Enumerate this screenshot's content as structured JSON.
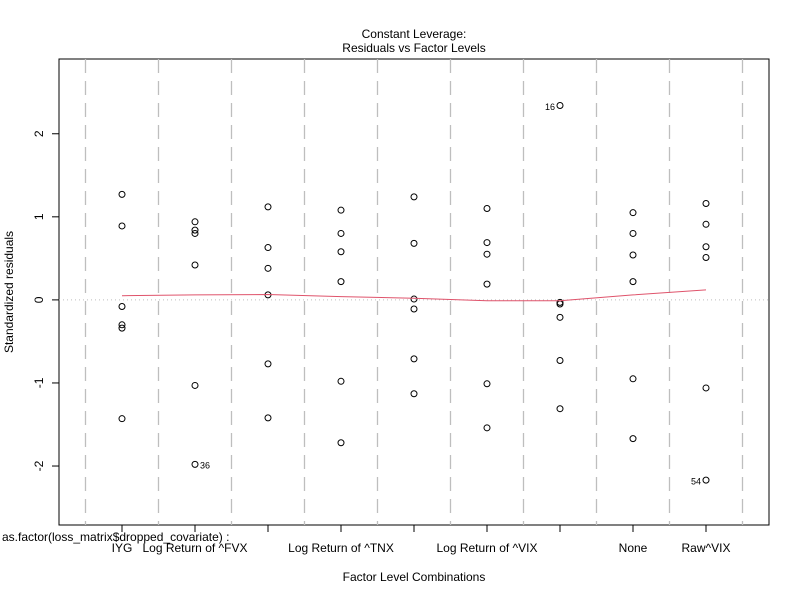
{
  "chart_data": {
    "type": "factor-residuals",
    "title": "Constant Leverage:",
    "subtitle": "Residuals vs Factor Levels",
    "xlabel": "Factor Level Combinations",
    "ylabel": "Standardized residuals",
    "factor_label": "as.factor(loss_matrix$dropped_covariate) :",
    "categories": [
      "IYG",
      "Log Return of ^FVX",
      null,
      "Log Return of ^TNX",
      null,
      "Log Return of ^VIX",
      null,
      "None",
      "Raw^VIX"
    ],
    "values": [
      [
        1.27,
        0.89,
        -0.08,
        -0.3,
        -0.34,
        -1.43
      ],
      [
        0.94,
        0.84,
        0.8,
        0.42,
        -1.03,
        -1.98
      ],
      [
        1.12,
        0.63,
        0.38,
        0.06,
        -0.77,
        -1.42
      ],
      [
        1.08,
        0.8,
        0.58,
        0.22,
        -0.98,
        -1.72
      ],
      [
        1.24,
        0.68,
        0.01,
        -0.11,
        -0.71,
        -1.13
      ],
      [
        1.1,
        0.69,
        0.55,
        0.19,
        -1.01,
        -1.54
      ],
      [
        2.34,
        -0.03,
        -0.05,
        -0.21,
        -0.73,
        -1.31
      ],
      [
        1.05,
        0.8,
        0.54,
        0.22,
        -0.95,
        -1.67
      ],
      [
        1.16,
        0.91,
        0.64,
        0.51,
        -1.06,
        -2.17
      ]
    ],
    "point_labels": [
      [
        null,
        null,
        null,
        null,
        null,
        null
      ],
      [
        null,
        null,
        null,
        null,
        null,
        "36"
      ],
      [
        null,
        null,
        null,
        null,
        null,
        null
      ],
      [
        null,
        null,
        null,
        null,
        null,
        null
      ],
      [
        null,
        null,
        null,
        null,
        null,
        null
      ],
      [
        null,
        null,
        null,
        null,
        null,
        null
      ],
      [
        "16",
        null,
        null,
        null,
        null,
        null
      ],
      [
        null,
        null,
        null,
        null,
        null,
        null
      ],
      [
        null,
        null,
        null,
        null,
        null,
        "54"
      ]
    ],
    "smooth": {
      "color": "#df536b",
      "values": [
        0.05,
        0.06,
        0.065,
        0.04,
        0.02,
        -0.01,
        -0.01,
        0.06,
        0.12
      ]
    },
    "hline": 0,
    "ylim": [
      -2.71,
      2.9
    ],
    "yticks": [
      -2,
      -1,
      0,
      1,
      2
    ]
  }
}
